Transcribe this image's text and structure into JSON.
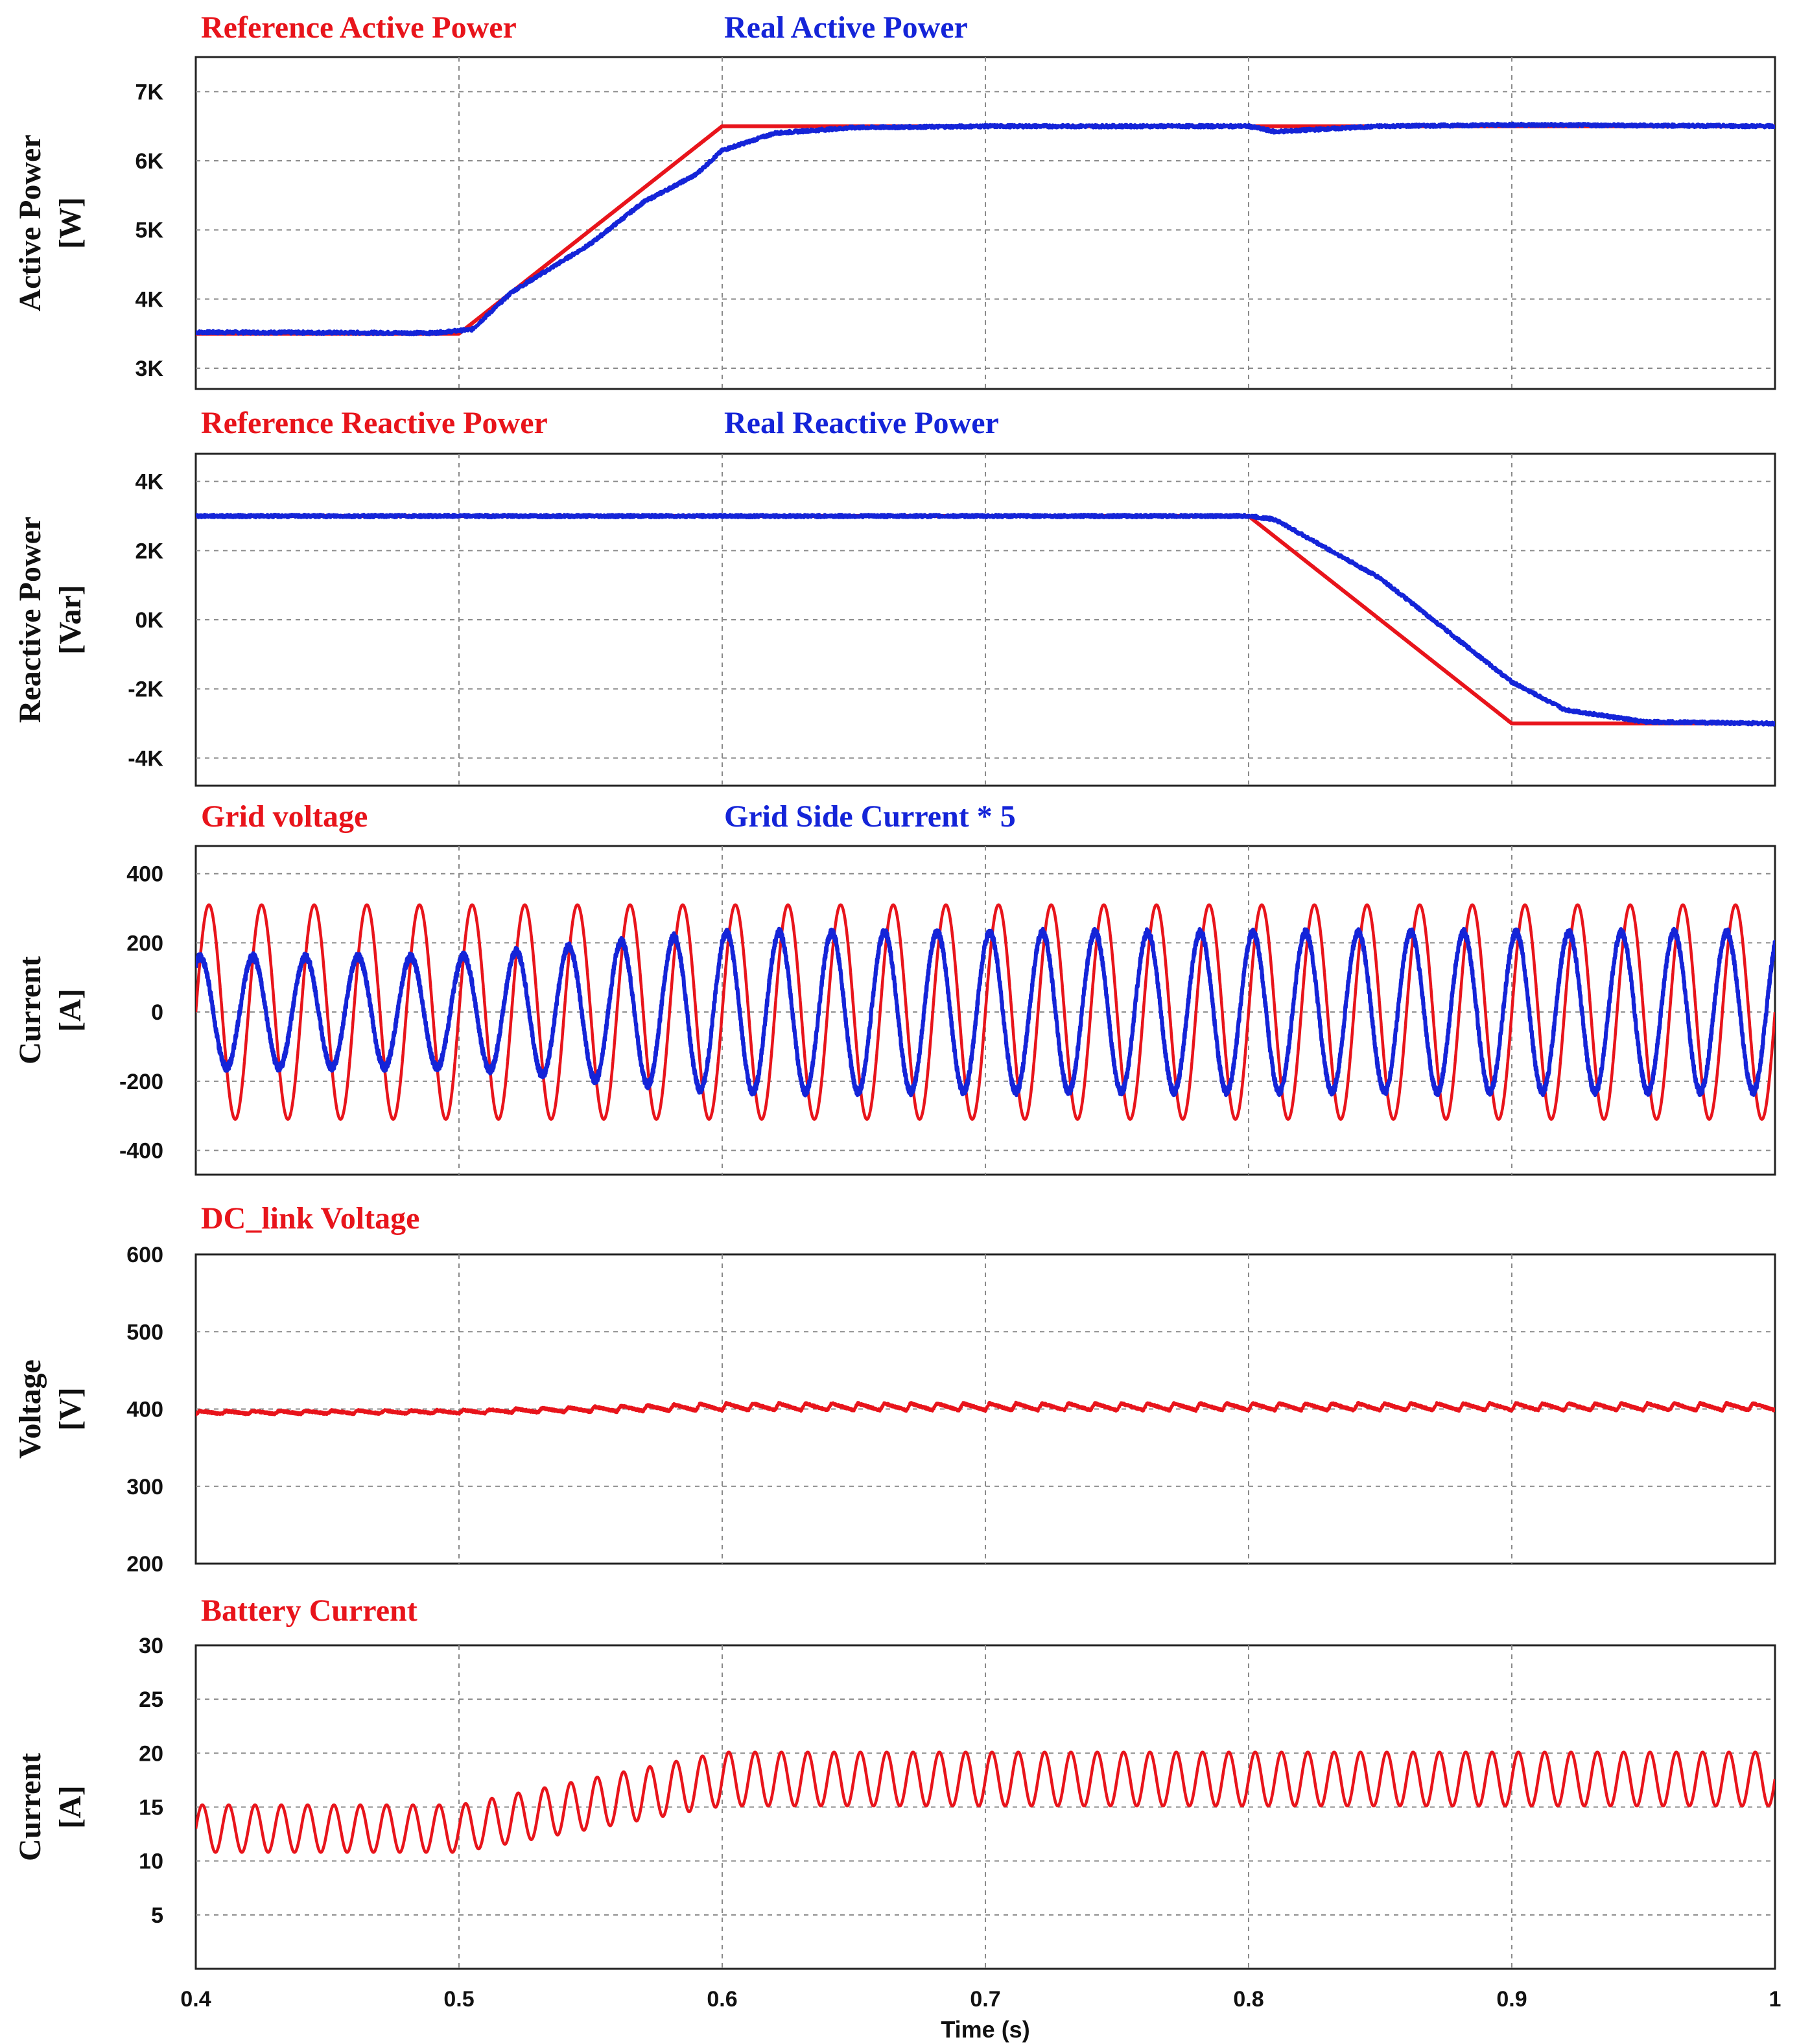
{
  "colors": {
    "red": "#e8141b",
    "blue": "#1424d8",
    "grid": "#8a8a8a",
    "axis": "#222222"
  },
  "chart_data": [
    {
      "type": "line",
      "id": "p1",
      "ylabel_lines": [
        "Active Power",
        "[W]"
      ],
      "xlim": [
        0.4,
        1.0
      ],
      "ylim": [
        2700,
        7500
      ],
      "yticks": [
        3000,
        4000,
        5000,
        6000,
        7000
      ],
      "ytick_labels": [
        "3K",
        "4K",
        "5K",
        "6K",
        "7K"
      ],
      "series": [
        {
          "name": "Reference Active Power",
          "color": "red",
          "x": [
            0.4,
            0.5,
            0.6,
            1.0
          ],
          "y": [
            3500,
            3500,
            6500,
            6500
          ]
        },
        {
          "name": "Real Active Power",
          "color": "blue",
          "x": [
            0.4,
            0.49,
            0.505,
            0.52,
            0.55,
            0.57,
            0.59,
            0.6,
            0.62,
            0.65,
            0.7,
            0.8,
            0.81,
            0.85,
            0.9,
            1.0
          ],
          "y": [
            3520,
            3510,
            3560,
            4100,
            4800,
            5400,
            5800,
            6150,
            6400,
            6480,
            6500,
            6500,
            6420,
            6500,
            6520,
            6500
          ]
        }
      ]
    },
    {
      "type": "line",
      "id": "p2",
      "ylabel_lines": [
        "Reactive Power",
        "[Var]"
      ],
      "xlim": [
        0.4,
        1.0
      ],
      "ylim": [
        -4800,
        4800
      ],
      "yticks": [
        -4000,
        -2000,
        0,
        2000,
        4000
      ],
      "ytick_labels": [
        "-4K",
        "-2K",
        "0K",
        "2K",
        "4K"
      ],
      "series": [
        {
          "name": "Reference Reactive Power",
          "color": "red",
          "x": [
            0.4,
            0.8,
            0.9,
            1.0
          ],
          "y": [
            3000,
            3000,
            -3000,
            -3000
          ]
        },
        {
          "name": "Real Reactive Power",
          "color": "blue",
          "x": [
            0.4,
            0.8,
            0.81,
            0.85,
            0.88,
            0.9,
            0.92,
            0.95,
            1.0
          ],
          "y": [
            3000,
            3000,
            2900,
            1200,
            -600,
            -1800,
            -2600,
            -2950,
            -3000
          ]
        }
      ]
    },
    {
      "type": "line",
      "id": "p3",
      "ylabel_lines": [
        "Current",
        "[A]"
      ],
      "xlim": [
        0.4,
        1.0
      ],
      "ylim": [
        -470,
        480
      ],
      "yticks": [
        -400,
        -200,
        0,
        200,
        400
      ],
      "ytick_labels": [
        "-400",
        "-200",
        "0",
        "200",
        "400"
      ],
      "series": [
        {
          "name": "Grid voltage",
          "color": "red",
          "waveform": "sine",
          "frequency": 50,
          "amplitude_x": [
            0.4,
            1.0
          ],
          "amplitude_y": [
            310,
            310
          ],
          "phase_deg": 0
        },
        {
          "name": "Grid Side Current * 5",
          "color": "blue",
          "waveform": "sine",
          "frequency": 50,
          "amplitude_x": [
            0.4,
            0.5,
            0.6,
            1.0
          ],
          "amplitude_y": [
            160,
            160,
            230,
            230
          ],
          "phase_deg": 60
        }
      ]
    },
    {
      "type": "line",
      "id": "p4",
      "ylabel_lines": [
        "Voltage",
        "[V]"
      ],
      "xlim": [
        0.4,
        1.0
      ],
      "ylim": [
        200,
        600
      ],
      "yticks": [
        200,
        300,
        400,
        500,
        600
      ],
      "ytick_labels": [
        "200",
        "300",
        "400",
        "500",
        "600"
      ],
      "series": [
        {
          "name": "DC_link Voltage",
          "color": "red",
          "waveform": "ripple",
          "frequency": 100,
          "mean_x": [
            0.4,
            0.5,
            0.6,
            1.0
          ],
          "mean_y": [
            395,
            396,
            402,
            402
          ],
          "ripple": [
            4,
            4,
            9,
            9
          ]
        }
      ]
    },
    {
      "type": "line",
      "id": "p5",
      "ylabel_lines": [
        "Current",
        "[A]"
      ],
      "xlabel": "Time (s)",
      "xlim": [
        0.4,
        1.0
      ],
      "xticks": [
        0.4,
        0.5,
        0.6,
        0.7,
        0.8,
        0.9,
        1.0
      ],
      "xtick_labels": [
        "0.4",
        "0.5",
        "0.6",
        "0.7",
        "0.8",
        "0.9",
        "1"
      ],
      "ylim": [
        0,
        30
      ],
      "yticks": [
        5,
        10,
        15,
        20,
        25,
        30
      ],
      "ytick_labels": [
        "5",
        "10",
        "15",
        "20",
        "25",
        "30"
      ],
      "series": [
        {
          "name": "Battery Current",
          "color": "red",
          "waveform": "sine",
          "frequency": 100,
          "mean_x": [
            0.4,
            0.5,
            0.6,
            1.0
          ],
          "mean_y": [
            13,
            13,
            17.6,
            17.6
          ],
          "amplitude_x": [
            0.4,
            0.5,
            0.6,
            1.0
          ],
          "amplitude_y": [
            2.2,
            2.2,
            2.5,
            2.5
          ]
        }
      ]
    }
  ]
}
